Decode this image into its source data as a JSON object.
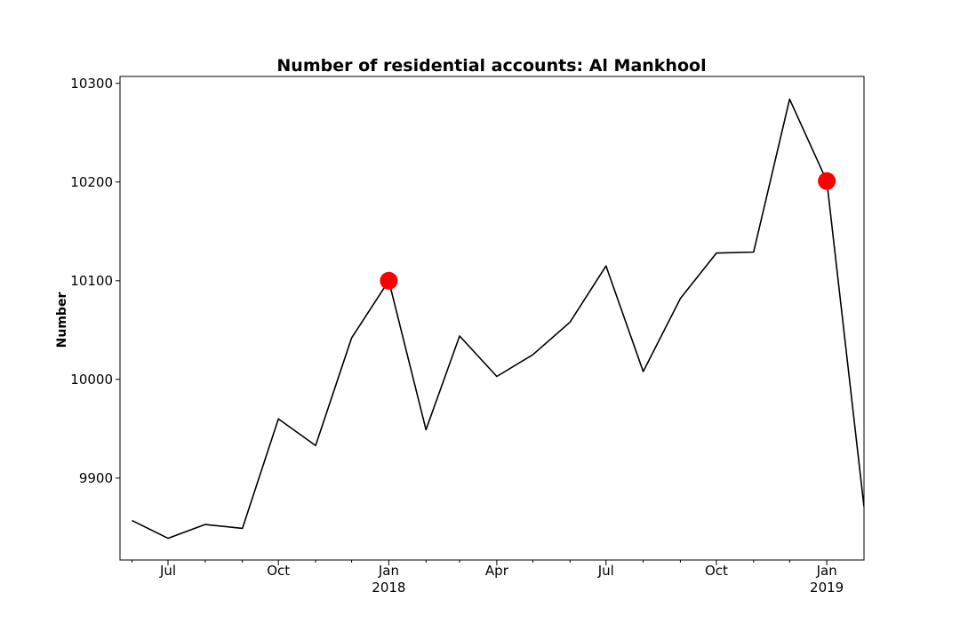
{
  "chart_data": {
    "type": "line",
    "title": "Number of residential accounts: Al Mankhool",
    "xlabel": "",
    "ylabel": "Number",
    "ylim": [
      9817,
      10307
    ],
    "xlim": [
      "2017-05-22",
      "2019-02-01"
    ],
    "y_ticks": [
      9900,
      10000,
      10100,
      10200,
      10300
    ],
    "x_ticks": [
      {
        "date": "2017-07-01",
        "label": "Jul",
        "year": ""
      },
      {
        "date": "2017-10-01",
        "label": "Oct",
        "year": ""
      },
      {
        "date": "2018-01-01",
        "label": "Jan",
        "year": "2018"
      },
      {
        "date": "2018-04-01",
        "label": "Apr",
        "year": ""
      },
      {
        "date": "2018-07-01",
        "label": "Jul",
        "year": ""
      },
      {
        "date": "2018-10-01",
        "label": "Oct",
        "year": ""
      },
      {
        "date": "2019-01-01",
        "label": "Jan",
        "year": "2019"
      }
    ],
    "minor_ticks": [
      "2017-06-01",
      "2017-08-01",
      "2017-09-01",
      "2017-11-01",
      "2017-12-01",
      "2018-02-01",
      "2018-03-01",
      "2018-05-01",
      "2018-06-01",
      "2018-08-01",
      "2018-09-01",
      "2018-11-01",
      "2018-12-01"
    ],
    "series": [
      {
        "name": "",
        "color": "#000000",
        "x": [
          "2017-06-01",
          "2017-07-01",
          "2017-08-01",
          "2017-09-01",
          "2017-10-01",
          "2017-11-01",
          "2017-12-01",
          "2018-01-01",
          "2018-02-01",
          "2018-03-01",
          "2018-04-01",
          "2018-05-01",
          "2018-06-01",
          "2018-07-01",
          "2018-08-01",
          "2018-09-01",
          "2018-10-01",
          "2018-11-01",
          "2018-12-01",
          "2019-01-01",
          "2019-02-01"
        ],
        "values": [
          9857,
          9839,
          9853,
          9849,
          9960,
          9933,
          10042,
          10100,
          9949,
          10044,
          10003,
          10025,
          10058,
          10115,
          10008,
          10082,
          10128,
          10129,
          10284,
          10201,
          9871
        ]
      }
    ],
    "markers": [
      {
        "x": "2018-01-01",
        "y": 10100,
        "color": "#ff0000"
      },
      {
        "x": "2019-01-01",
        "y": 10201,
        "color": "#ff0000"
      }
    ],
    "grid": false,
    "legend": "none"
  }
}
